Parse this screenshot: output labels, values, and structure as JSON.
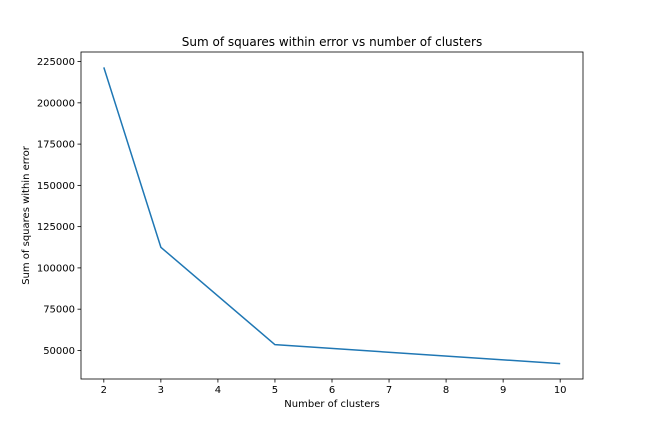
{
  "chart_data": {
    "type": "line",
    "title": "Sum of squares within error vs number of clusters",
    "xlabel": "Number of clusters",
    "ylabel": "Sum of squares within error",
    "x": [
      2,
      3,
      5,
      10
    ],
    "series": [
      {
        "values": [
          221500,
          112500,
          53500,
          42000
        ],
        "color": "#1f77b4"
      }
    ],
    "xticks": [
      2,
      3,
      4,
      5,
      6,
      7,
      8,
      9,
      10
    ],
    "yticks": [
      50000,
      75000,
      100000,
      125000,
      150000,
      175000,
      200000,
      225000
    ],
    "xlim": [
      1.6,
      10.4
    ],
    "ylim": [
      32700,
      230800
    ],
    "grid": false,
    "legend": "none"
  }
}
